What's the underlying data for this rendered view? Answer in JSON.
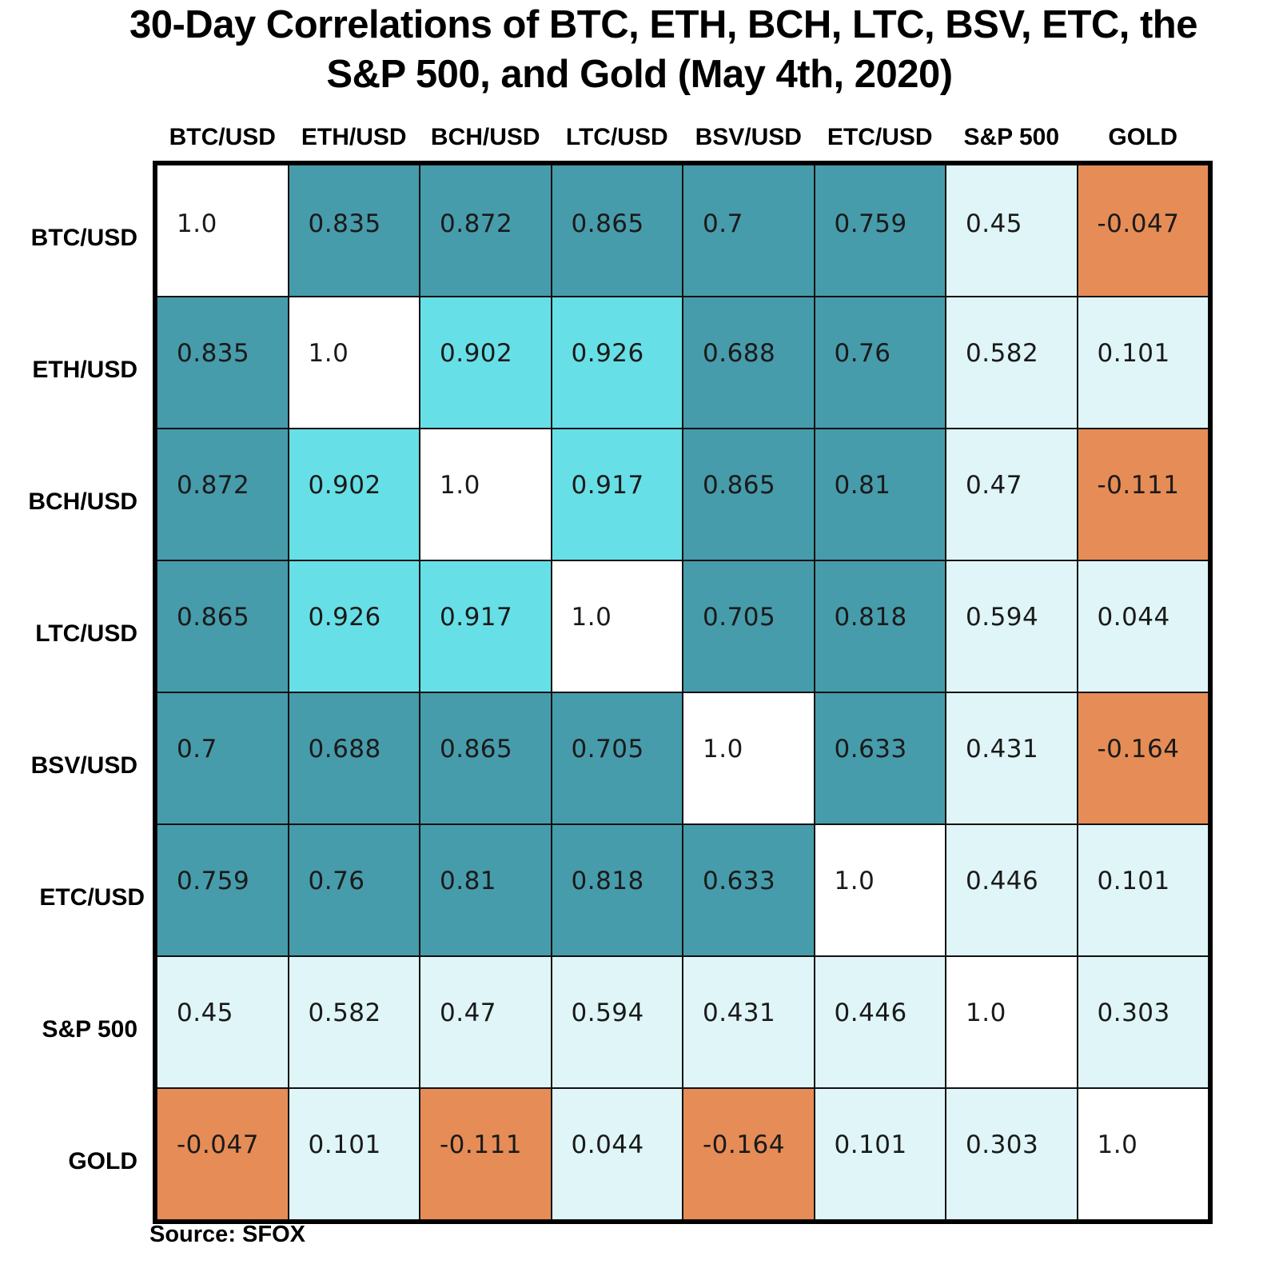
{
  "chart_data": {
    "type": "heatmap",
    "title_lines": [
      "30-Day Correlations of BTC, ETH, BCH, LTC, BSV, ETC, the",
      "S&P 500, and Gold (May 4th, 2020)"
    ],
    "columns": [
      "BTC/USD",
      "ETH/USD",
      "BCH/USD",
      "LTC/USD",
      "BSV/USD",
      "ETC/USD",
      "S&P 500",
      "GOLD"
    ],
    "rows": [
      "BTC/USD",
      "ETH/USD",
      "BCH/USD",
      "LTC/USD",
      "BSV/USD",
      "ETC/USD",
      "S&P 500",
      "GOLD"
    ],
    "values": [
      [
        "1.0",
        "0.835",
        "0.872",
        "0.865",
        "0.7",
        "0.759",
        "0.45",
        "-0.047"
      ],
      [
        "0.835",
        "1.0",
        "0.902",
        "0.926",
        "0.688",
        "0.76",
        "0.582",
        "0.101"
      ],
      [
        "0.872",
        "0.902",
        "1.0",
        "0.917",
        "0.865",
        "0.81",
        "0.47",
        "-0.111"
      ],
      [
        "0.865",
        "0.926",
        "0.917",
        "1.0",
        "0.705",
        "0.818",
        "0.594",
        "0.044"
      ],
      [
        "0.7",
        "0.688",
        "0.865",
        "0.705",
        "1.0",
        "0.633",
        "0.431",
        "-0.164"
      ],
      [
        "0.759",
        "0.76",
        "0.81",
        "0.818",
        "0.633",
        "1.0",
        "0.446",
        "0.101"
      ],
      [
        "0.45",
        "0.582",
        "0.47",
        "0.594",
        "0.431",
        "0.446",
        "1.0",
        "0.303"
      ],
      [
        "-0.047",
        "0.101",
        "-0.111",
        "0.044",
        "-0.164",
        "0.101",
        "0.303",
        "1.0"
      ]
    ],
    "colors": {
      "diagonal": "#ffffff",
      "very_high": "#67dfe6",
      "high": "#469cab",
      "moderate": "#dff5f7",
      "negative": "#e68c56"
    },
    "source": "Source: SFOX"
  }
}
